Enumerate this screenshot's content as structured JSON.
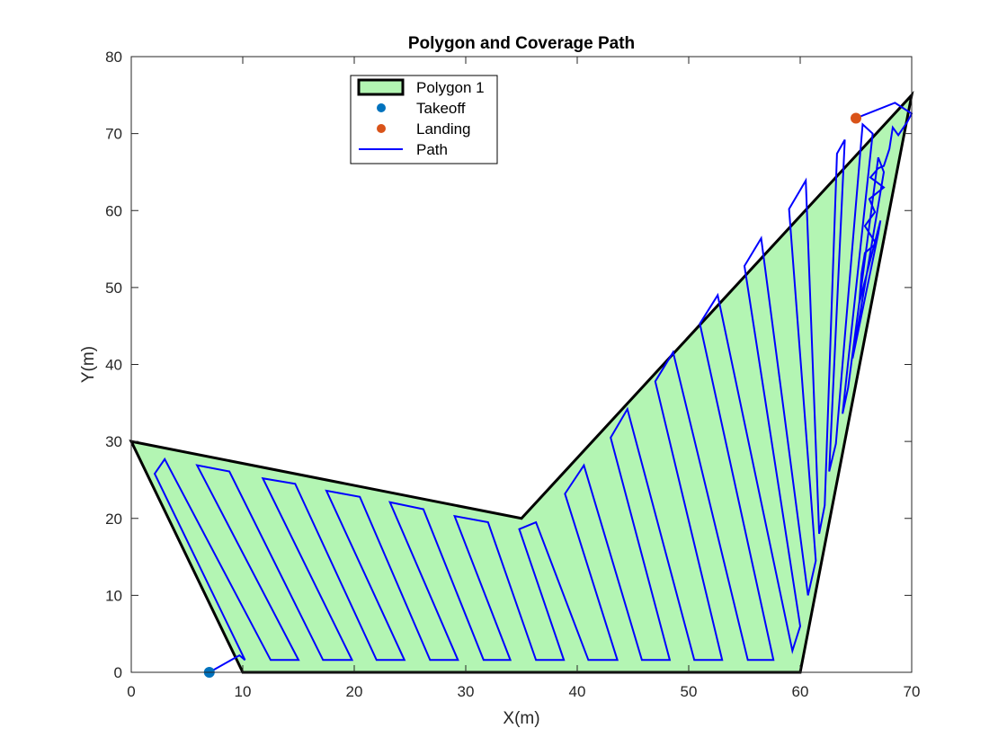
{
  "chart_data": {
    "type": "line",
    "title": "Polygon and Coverage Path",
    "xlabel": "X(m)",
    "ylabel": "Y(m)",
    "xlim": [
      0,
      70
    ],
    "ylim": [
      0,
      80
    ],
    "xticks": [
      "0",
      "10",
      "20",
      "30",
      "40",
      "50",
      "60",
      "70"
    ],
    "yticks": [
      "0",
      "10",
      "20",
      "30",
      "40",
      "50",
      "60",
      "70",
      "80"
    ],
    "grid": false,
    "legend": {
      "placement": "top",
      "entries": [
        {
          "label": "Polygon 1",
          "kind": "patch"
        },
        {
          "label": "Takeoff",
          "kind": "marker"
        },
        {
          "label": "Landing",
          "kind": "marker"
        },
        {
          "label": "Path",
          "kind": "line"
        }
      ]
    },
    "colors": {
      "polygon_fill": "#b3f5b3",
      "polygon_edge": "#000000",
      "takeoff": "#0072bd",
      "landing": "#d95319",
      "path": "#0000ff"
    },
    "polygon": [
      [
        0,
        30
      ],
      [
        35,
        20
      ],
      [
        70,
        75
      ],
      [
        60,
        0
      ],
      [
        10,
        0
      ]
    ],
    "takeoff": [
      7,
      0
    ],
    "landing": [
      65,
      72
    ],
    "path": [
      [
        7,
        0
      ],
      [
        9.7,
        2.2
      ],
      [
        10.2,
        1.6
      ],
      [
        2.1,
        25.8
      ],
      [
        3.0,
        27.7
      ],
      [
        12.5,
        1.6
      ],
      [
        15.0,
        1.6
      ],
      [
        5.9,
        26.9
      ],
      [
        8.8,
        26.1
      ],
      [
        17.2,
        1.6
      ],
      [
        19.8,
        1.6
      ],
      [
        11.8,
        25.2
      ],
      [
        14.7,
        24.5
      ],
      [
        22.0,
        1.6
      ],
      [
        24.5,
        1.6
      ],
      [
        17.5,
        23.6
      ],
      [
        20.5,
        22.8
      ],
      [
        26.8,
        1.6
      ],
      [
        29.3,
        1.6
      ],
      [
        23.2,
        22.1
      ],
      [
        26.2,
        21.2
      ],
      [
        31.6,
        1.6
      ],
      [
        34.0,
        1.6
      ],
      [
        29.0,
        20.3
      ],
      [
        32.0,
        19.5
      ],
      [
        36.3,
        1.6
      ],
      [
        38.8,
        1.6
      ],
      [
        34.8,
        18.6
      ],
      [
        36.3,
        19.5
      ],
      [
        41.0,
        1.6
      ],
      [
        43.6,
        1.6
      ],
      [
        38.9,
        23.2
      ],
      [
        40.6,
        26.9
      ],
      [
        45.8,
        1.6
      ],
      [
        48.3,
        1.6
      ],
      [
        43.0,
        30.5
      ],
      [
        44.5,
        34.2
      ],
      [
        50.5,
        1.6
      ],
      [
        53.0,
        1.6
      ],
      [
        47.0,
        37.8
      ],
      [
        48.6,
        41.6
      ],
      [
        55.3,
        1.6
      ],
      [
        57.6,
        1.6
      ],
      [
        51.0,
        45.3
      ],
      [
        52.6,
        49.0
      ],
      [
        59.3,
        2.8
      ],
      [
        60.0,
        6.0
      ],
      [
        55.0,
        52.8
      ],
      [
        56.5,
        56.4
      ],
      [
        60.7,
        10.0
      ],
      [
        61.4,
        14.5
      ],
      [
        59.0,
        60.2
      ],
      [
        60.5,
        63.9
      ],
      [
        61.7,
        18.0
      ],
      [
        62.2,
        21.7
      ],
      [
        63.3,
        67.4
      ],
      [
        64.0,
        69.2
      ],
      [
        62.6,
        26.1
      ],
      [
        63.2,
        29.7
      ],
      [
        65.6,
        71.2
      ],
      [
        66.5,
        70.0
      ],
      [
        63.8,
        33.6
      ],
      [
        64.3,
        37.0
      ],
      [
        67.0,
        66.9
      ],
      [
        67.5,
        65.0
      ],
      [
        64.7,
        40.8
      ],
      [
        65.2,
        44.3
      ],
      [
        67.0,
        57.0
      ],
      [
        67.2,
        58.7
      ],
      [
        65.3,
        48.0
      ],
      [
        65.5,
        51.8
      ],
      [
        65.8,
        54.5
      ],
      [
        66.8,
        55.7
      ],
      [
        65.8,
        58.0
      ],
      [
        66.7,
        59.8
      ],
      [
        66.2,
        61.5
      ],
      [
        67.5,
        63.0
      ],
      [
        66.3,
        64.3
      ],
      [
        67.0,
        65.5
      ],
      [
        67.5,
        65.8
      ],
      [
        68.0,
        68.0
      ],
      [
        68.3,
        70.8
      ],
      [
        68.8,
        69.8
      ],
      [
        69.6,
        71.5
      ],
      [
        70.0,
        72.6
      ],
      [
        68.5,
        74.0
      ],
      [
        65,
        72
      ]
    ]
  }
}
